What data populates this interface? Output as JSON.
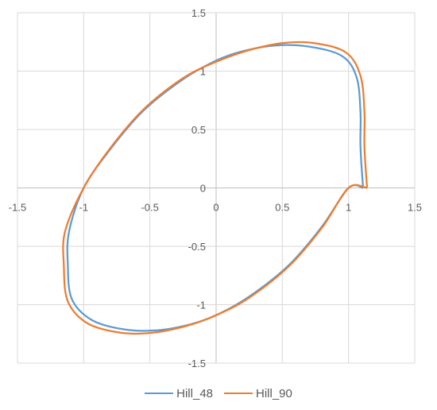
{
  "chart_data": {
    "type": "scatter",
    "title": "",
    "xlabel": "",
    "ylabel": "",
    "xlim": [
      -1.5,
      1.5
    ],
    "ylim": [
      -1.5,
      1.5
    ],
    "x_ticks": [
      "-1.5",
      "-1",
      "-0.5",
      "0",
      "0.5",
      "1",
      "1.5"
    ],
    "y_ticks": [
      "1.5",
      "1",
      "0.5",
      "0",
      "-0.5",
      "-1",
      "-1.5"
    ],
    "grid": true,
    "legend_position": "bottom",
    "series": [
      {
        "name": "Hill_48",
        "color": "#5B9BD5",
        "points": [
          [
            1.11,
            0.0
          ],
          [
            1.09,
            0.35
          ],
          [
            1.09,
            0.65
          ],
          [
            1.06,
            0.95
          ],
          [
            0.95,
            1.13
          ],
          [
            0.7,
            1.21
          ],
          [
            0.45,
            1.22
          ],
          [
            0.2,
            1.17
          ],
          [
            0.0,
            1.09
          ],
          [
            -0.25,
            0.93
          ],
          [
            -0.55,
            0.66
          ],
          [
            -0.8,
            0.33
          ],
          [
            -1.0,
            0.0
          ],
          [
            -1.11,
            -0.37
          ],
          [
            -1.12,
            -0.65
          ],
          [
            -1.09,
            -0.95
          ],
          [
            -0.94,
            -1.13
          ],
          [
            -0.7,
            -1.21
          ],
          [
            -0.45,
            -1.22
          ],
          [
            -0.2,
            -1.17
          ],
          [
            0.0,
            -1.09
          ],
          [
            0.25,
            -0.93
          ],
          [
            0.55,
            -0.66
          ],
          [
            0.8,
            -0.33
          ],
          [
            1.0,
            0.0
          ],
          [
            1.11,
            0.0
          ]
        ]
      },
      {
        "name": "Hill_90",
        "color": "#ED7D31",
        "points": [
          [
            1.14,
            0.0
          ],
          [
            1.12,
            0.35
          ],
          [
            1.12,
            0.65
          ],
          [
            1.09,
            0.96
          ],
          [
            0.98,
            1.16
          ],
          [
            0.74,
            1.24
          ],
          [
            0.5,
            1.24
          ],
          [
            0.25,
            1.18
          ],
          [
            0.0,
            1.08
          ],
          [
            -0.25,
            0.94
          ],
          [
            -0.55,
            0.67
          ],
          [
            -0.8,
            0.34
          ],
          [
            -1.0,
            0.0
          ],
          [
            -1.14,
            -0.37
          ],
          [
            -1.15,
            -0.66
          ],
          [
            -1.12,
            -0.97
          ],
          [
            -0.97,
            -1.16
          ],
          [
            -0.72,
            -1.24
          ],
          [
            -0.48,
            -1.24
          ],
          [
            -0.22,
            -1.18
          ],
          [
            0.0,
            -1.09
          ],
          [
            0.25,
            -0.94
          ],
          [
            0.55,
            -0.67
          ],
          [
            0.8,
            -0.34
          ],
          [
            1.0,
            0.0
          ],
          [
            1.14,
            0.0
          ]
        ]
      }
    ]
  }
}
